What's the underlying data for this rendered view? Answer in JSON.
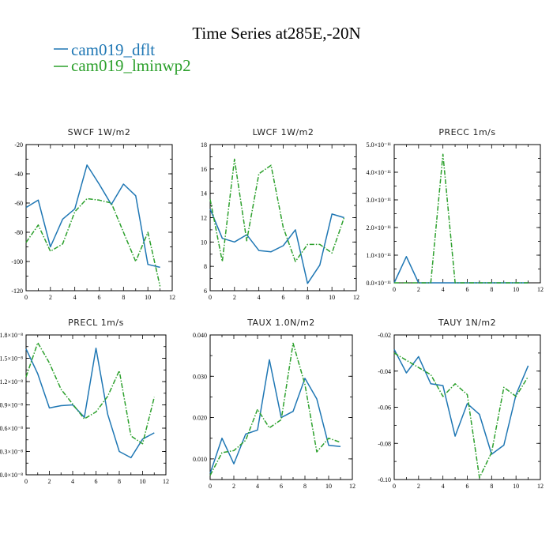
{
  "figure": {
    "title": "Time Series at285E,-20N"
  },
  "legend": [
    {
      "label": "cam019_dflt",
      "color": "#1f77b4"
    },
    {
      "label": "cam019_lminwp2",
      "color": "#2ca02c"
    }
  ],
  "chart_data": [
    {
      "type": "line",
      "title": "SWCF   1W/m2",
      "x": [
        0,
        1,
        2,
        3,
        4,
        5,
        6,
        7,
        8,
        9,
        10,
        11
      ],
      "xlim": [
        0,
        12
      ],
      "xticks": [
        "0",
        "2",
        "4",
        "6",
        "8",
        "10",
        "12"
      ],
      "ylim": [
        -120,
        -20
      ],
      "yticks": [
        "-120",
        "-100",
        "-80",
        "-60",
        "-40",
        "-20"
      ],
      "series": [
        {
          "name": "cam019_dflt",
          "values": [
            -63,
            -58,
            -90,
            -71,
            -64,
            -34,
            -47,
            -61,
            -47,
            -55,
            -102,
            -104
          ]
        },
        {
          "name": "cam019_lminwp2",
          "values": [
            -87,
            -75,
            -93,
            -88,
            -66,
            -57,
            -58,
            -60,
            -80,
            -100,
            -80,
            -117
          ]
        }
      ]
    },
    {
      "type": "line",
      "title": "LWCF   1W/m2",
      "x": [
        0,
        1,
        2,
        3,
        4,
        5,
        6,
        7,
        8,
        9,
        10,
        11
      ],
      "xlim": [
        0,
        12
      ],
      "xticks": [
        "0",
        "2",
        "4",
        "6",
        "8",
        "10",
        "12"
      ],
      "ylim": [
        6,
        18
      ],
      "yticks": [
        "6",
        "8",
        "10",
        "12",
        "14",
        "16",
        "18"
      ],
      "series": [
        {
          "name": "cam019_dflt",
          "values": [
            12.7,
            10.3,
            10.0,
            10.6,
            9.3,
            9.2,
            9.7,
            11.0,
            6.6,
            8.1,
            12.3,
            12.0
          ]
        },
        {
          "name": "cam019_lminwp2",
          "values": [
            13.5,
            8.4,
            16.8,
            10.1,
            15.6,
            16.3,
            11.2,
            8.4,
            9.8,
            9.8,
            9.1,
            12.0
          ]
        }
      ]
    },
    {
      "type": "line",
      "title": "PRECC   1m/s",
      "x": [
        0,
        1,
        2,
        3,
        4,
        5,
        6,
        7,
        8,
        9,
        10,
        11
      ],
      "xlim": [
        0,
        12
      ],
      "xticks": [
        "0",
        "2",
        "4",
        "6",
        "8",
        "10",
        "12"
      ],
      "ylim": [
        0,
        5
      ],
      "yticks": [
        "0.0×10⁻¹¹",
        "1.0×10⁻¹¹",
        "2.0×10⁻¹¹",
        "3.0×10⁻¹¹",
        "4.0×10⁻¹¹",
        "5.0×10⁻¹¹"
      ],
      "series": [
        {
          "name": "cam019_dflt",
          "values": [
            0,
            0.95,
            0,
            0,
            0,
            0,
            0,
            0,
            0,
            0,
            0,
            0
          ]
        },
        {
          "name": "cam019_lminwp2",
          "values": [
            0,
            0,
            0,
            0,
            4.65,
            0,
            0,
            0,
            0,
            0,
            0,
            0
          ]
        }
      ]
    },
    {
      "type": "line",
      "title": "PRECL   1m/s",
      "x": [
        0,
        1,
        2,
        3,
        4,
        5,
        6,
        7,
        8,
        9,
        10,
        11
      ],
      "xlim": [
        0,
        12
      ],
      "xticks": [
        "0",
        "2",
        "4",
        "6",
        "8",
        "10",
        "12"
      ],
      "ylim": [
        0,
        1.8
      ],
      "yticks": [
        "0.0×10⁻⁸",
        "0.3×10⁻⁸",
        "0.6×10⁻⁸",
        "0.9×10⁻⁸",
        "1.2×10⁻⁸",
        "1.5×10⁻⁸",
        "1.8×10⁻⁸"
      ],
      "series": [
        {
          "name": "cam019_dflt",
          "values": [
            1.62,
            1.3,
            0.86,
            0.89,
            0.9,
            0.74,
            1.63,
            0.78,
            0.3,
            0.22,
            0.46,
            0.54
          ]
        },
        {
          "name": "cam019_lminwp2",
          "values": [
            1.26,
            1.7,
            1.44,
            1.1,
            0.91,
            0.72,
            0.81,
            1.01,
            1.34,
            0.5,
            0.4,
            1.0
          ]
        }
      ]
    },
    {
      "type": "line",
      "title": "TAUX   1.0N/m2",
      "x": [
        0,
        1,
        2,
        3,
        4,
        5,
        6,
        7,
        8,
        9,
        10,
        11
      ],
      "xlim": [
        0,
        12
      ],
      "xticks": [
        "0",
        "2",
        "4",
        "6",
        "8",
        "10",
        "12"
      ],
      "ylim": [
        0.005,
        0.04
      ],
      "yticks": [
        "0.010",
        "0.020",
        "0.030",
        "0.040"
      ],
      "yticks_values": [
        0.01,
        0.02,
        0.03,
        0.04
      ],
      "series": [
        {
          "name": "cam019_dflt",
          "values": [
            0.0065,
            0.015,
            0.0088,
            0.016,
            0.017,
            0.034,
            0.02,
            0.0215,
            0.0295,
            0.0245,
            0.0133,
            0.013
          ]
        },
        {
          "name": "cam019_lminwp2",
          "values": [
            0.006,
            0.0115,
            0.012,
            0.0145,
            0.022,
            0.0175,
            0.0195,
            0.038,
            0.028,
            0.0117,
            0.015,
            0.014
          ]
        }
      ]
    },
    {
      "type": "line",
      "title": "TAUY   1N/m2",
      "x": [
        0,
        1,
        2,
        3,
        4,
        5,
        6,
        7,
        8,
        9,
        10,
        11
      ],
      "xlim": [
        0,
        12
      ],
      "xticks": [
        "0",
        "2",
        "4",
        "6",
        "8",
        "10",
        "12"
      ],
      "ylim": [
        -0.1,
        -0.02
      ],
      "yticks": [
        "-0.10",
        "-0.08",
        "-0.06",
        "-0.04",
        "-0.02"
      ],
      "series": [
        {
          "name": "cam019_dflt",
          "values": [
            -0.028,
            -0.041,
            -0.032,
            -0.047,
            -0.048,
            -0.076,
            -0.058,
            -0.064,
            -0.086,
            -0.081,
            -0.053,
            -0.037
          ]
        },
        {
          "name": "cam019_lminwp2",
          "values": [
            -0.03,
            -0.034,
            -0.038,
            -0.042,
            -0.054,
            -0.047,
            -0.053,
            -0.099,
            -0.085,
            -0.049,
            -0.054,
            -0.043
          ]
        }
      ]
    }
  ]
}
